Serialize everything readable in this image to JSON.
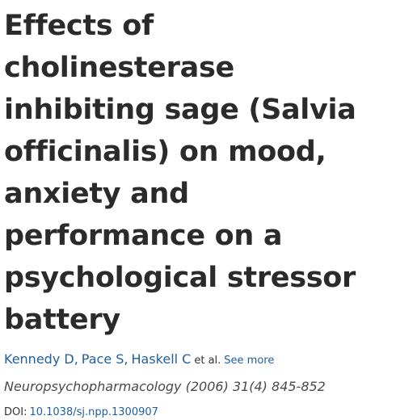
{
  "article": {
    "title": "Effects of cholinesterase inhibiting sage (Salvia officinalis) on mood, anxiety and performance on a psychological stressor battery",
    "authors": [
      "Kennedy D,",
      "Pace S,",
      "Haskell C"
    ],
    "et_al": "et al.",
    "see_more": "See more",
    "journal": "Neuropsychopharmacology (2006) 31(4) 845-852",
    "doi_label": "DOI:",
    "doi": "10.1038/sj.npp.1300907"
  }
}
